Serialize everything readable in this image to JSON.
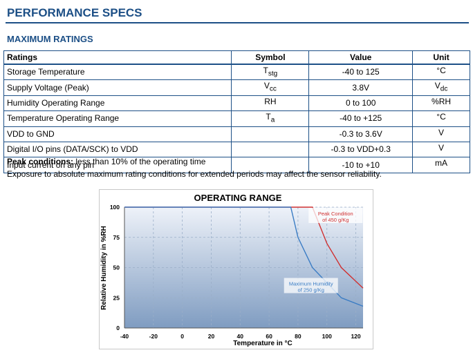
{
  "header": {
    "title": "PERFORMANCE SPECS"
  },
  "section": {
    "title": "MAXIMUM RATINGS"
  },
  "table": {
    "headers": [
      "Ratings",
      "Symbol",
      "Value",
      "Unit"
    ],
    "rows": [
      {
        "rating": "Storage Temperature",
        "sym_base": "T",
        "sym_sub": "stg",
        "value": "-40 to 125",
        "unit_base": "°C",
        "unit_sub": ""
      },
      {
        "rating": "Supply Voltage (Peak)",
        "sym_base": "V",
        "sym_sub": "cc",
        "value": "3.8V",
        "unit_base": "V",
        "unit_sub": "dc"
      },
      {
        "rating": "Humidity Operating Range",
        "sym_base": "RH",
        "sym_sub": "",
        "value": "0 to 100",
        "unit_base": "%RH",
        "unit_sub": ""
      },
      {
        "rating": "Temperature Operating Range",
        "sym_base": "T",
        "sym_sub": "a",
        "value": "-40 to +125",
        "unit_base": "°C",
        "unit_sub": ""
      },
      {
        "rating": "VDD to GND",
        "sym_base": "",
        "sym_sub": "",
        "value": "-0.3 to 3.6V",
        "unit_base": "V",
        "unit_sub": ""
      },
      {
        "rating": "Digital I/O pins (DATA/SCK) to VDD",
        "sym_base": "",
        "sym_sub": "",
        "value": "-0.3 to VDD+0.3",
        "unit_base": "V",
        "unit_sub": ""
      },
      {
        "rating": "Input current on any pin",
        "sym_base": "",
        "sym_sub": "",
        "value": "-10 to +10",
        "unit_base": "mA",
        "unit_sub": ""
      }
    ]
  },
  "notes": {
    "peak_label": "Peak conditions:",
    "peak_text": " less than 10% of the operating time",
    "exposure": "Exposure to absolute maximum rating conditions for extended periods may affect the sensor reliability."
  },
  "chart_data": {
    "type": "line",
    "title": "OPERATING RANGE",
    "xlabel": "Temperature in °C",
    "ylabel": "Relative Humidity in %RH",
    "xlim": [
      -40,
      125
    ],
    "ylim": [
      0,
      100
    ],
    "x_ticks": [
      "-40",
      "-20",
      "0",
      "20",
      "40",
      "60",
      "80",
      "100",
      "120"
    ],
    "y_ticks": [
      "0",
      "25",
      "50",
      "75",
      "100"
    ],
    "grid": true,
    "series": [
      {
        "label_lines": [
          "Peak Condition",
          "of 450 g/Kg"
        ],
        "color": "#d03030",
        "x": [
          -40,
          90,
          100,
          110,
          125
        ],
        "y": [
          100,
          100,
          70,
          50,
          33
        ]
      },
      {
        "label_lines": [
          "Maximum Humidity",
          "of 250 g/Kg"
        ],
        "color": "#3a7cc4",
        "x": [
          -40,
          75,
          80,
          90,
          110,
          125
        ],
        "y": [
          100,
          100,
          75,
          50,
          25,
          18
        ]
      }
    ]
  }
}
